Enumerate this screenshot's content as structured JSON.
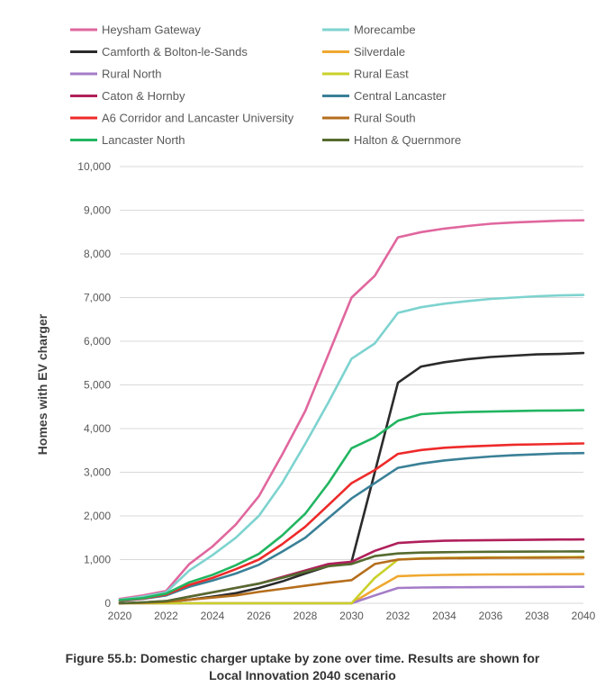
{
  "chart_data": {
    "type": "line",
    "title": "",
    "xlabel": "",
    "ylabel": "Homes with EV charger",
    "ylim": [
      0,
      10000
    ],
    "xlim": [
      2020,
      2040
    ],
    "y_ticks": [
      "0",
      "1,000",
      "2,000",
      "3,000",
      "4,000",
      "5,000",
      "6,000",
      "7,000",
      "8,000",
      "9,000",
      "10,000"
    ],
    "x_ticks": [
      "2020",
      "2022",
      "2024",
      "2026",
      "2028",
      "2030",
      "2032",
      "2034",
      "2036",
      "2038",
      "2040"
    ],
    "grid": true,
    "legend_position": "top",
    "x": [
      2020,
      2021,
      2022,
      2023,
      2024,
      2025,
      2026,
      2027,
      2028,
      2029,
      2030,
      2031,
      2032,
      2033,
      2034,
      2035,
      2036,
      2037,
      2038,
      2039,
      2040
    ],
    "series": [
      {
        "name": "Heysham Gateway",
        "color": "#E0679E",
        "values": [
          100,
          180,
          280,
          900,
          1300,
          1800,
          2450,
          3400,
          4400,
          5700,
          7000,
          7500,
          8380,
          8500,
          8580,
          8640,
          8690,
          8720,
          8740,
          8760,
          8770
        ]
      },
      {
        "name": "Morecambe",
        "color": "#7DD3CF",
        "values": [
          80,
          150,
          250,
          750,
          1100,
          1500,
          2000,
          2750,
          3650,
          4600,
          5600,
          5950,
          6650,
          6780,
          6860,
          6920,
          6970,
          7000,
          7030,
          7050,
          7060
        ]
      },
      {
        "name": "Camforth & Bolton-le-Sands",
        "color": "#2B2B2B",
        "values": [
          0,
          10,
          30,
          80,
          150,
          230,
          350,
          500,
          680,
          850,
          950,
          3000,
          5050,
          5420,
          5520,
          5590,
          5640,
          5670,
          5700,
          5710,
          5730
        ]
      },
      {
        "name": "Silverdale",
        "color": "#F0A830",
        "values": [
          0,
          0,
          0,
          0,
          0,
          0,
          0,
          0,
          0,
          0,
          0,
          320,
          620,
          640,
          650,
          655,
          660,
          662,
          664,
          666,
          668
        ]
      },
      {
        "name": "Rural North",
        "color": "#A47CC8",
        "values": [
          0,
          0,
          0,
          0,
          0,
          0,
          0,
          0,
          0,
          0,
          0,
          180,
          350,
          360,
          365,
          368,
          370,
          372,
          374,
          376,
          378
        ]
      },
      {
        "name": "Rural East",
        "color": "#C9D02A",
        "values": [
          0,
          0,
          0,
          0,
          0,
          0,
          0,
          0,
          0,
          0,
          0,
          580,
          1000,
          1030,
          1040,
          1045,
          1050,
          1052,
          1055,
          1057,
          1060
        ]
      },
      {
        "name": "Caton & Hornby",
        "color": "#B0205A",
        "values": [
          0,
          20,
          50,
          150,
          250,
          350,
          450,
          600,
          750,
          900,
          950,
          1200,
          1380,
          1410,
          1430,
          1440,
          1445,
          1450,
          1455,
          1460,
          1462
        ]
      },
      {
        "name": "Central Lancaster",
        "color": "#3A8097",
        "values": [
          50,
          100,
          180,
          380,
          520,
          680,
          880,
          1180,
          1500,
          1950,
          2400,
          2750,
          3100,
          3200,
          3270,
          3320,
          3360,
          3390,
          3410,
          3430,
          3440
        ]
      },
      {
        "name": "A6 Corridor and Lancaster University",
        "color": "#EE2A2A",
        "values": [
          60,
          110,
          200,
          420,
          580,
          780,
          1000,
          1350,
          1750,
          2250,
          2750,
          3050,
          3420,
          3510,
          3560,
          3590,
          3610,
          3630,
          3640,
          3650,
          3660
        ]
      },
      {
        "name": "Rural South",
        "color": "#B56E1C",
        "values": [
          0,
          10,
          30,
          80,
          130,
          180,
          260,
          330,
          400,
          470,
          530,
          900,
          1000,
          1020,
          1030,
          1035,
          1040,
          1042,
          1044,
          1046,
          1048
        ]
      },
      {
        "name": "Lancaster North",
        "color": "#22B561",
        "values": [
          70,
          120,
          220,
          480,
          650,
          870,
          1130,
          1550,
          2050,
          2750,
          3550,
          3800,
          4180,
          4330,
          4360,
          4380,
          4390,
          4400,
          4410,
          4415,
          4420
        ]
      },
      {
        "name": "Halton & Quernmore",
        "color": "#556B2F",
        "values": [
          0,
          20,
          50,
          150,
          250,
          350,
          450,
          580,
          720,
          850,
          900,
          1080,
          1140,
          1160,
          1170,
          1175,
          1180,
          1182,
          1184,
          1186,
          1188
        ]
      }
    ]
  },
  "caption": {
    "line1": "Figure 55.b: Domestic charger uptake by zone over time. Results are shown for",
    "line2": "Local Innovation 2040 scenario"
  }
}
